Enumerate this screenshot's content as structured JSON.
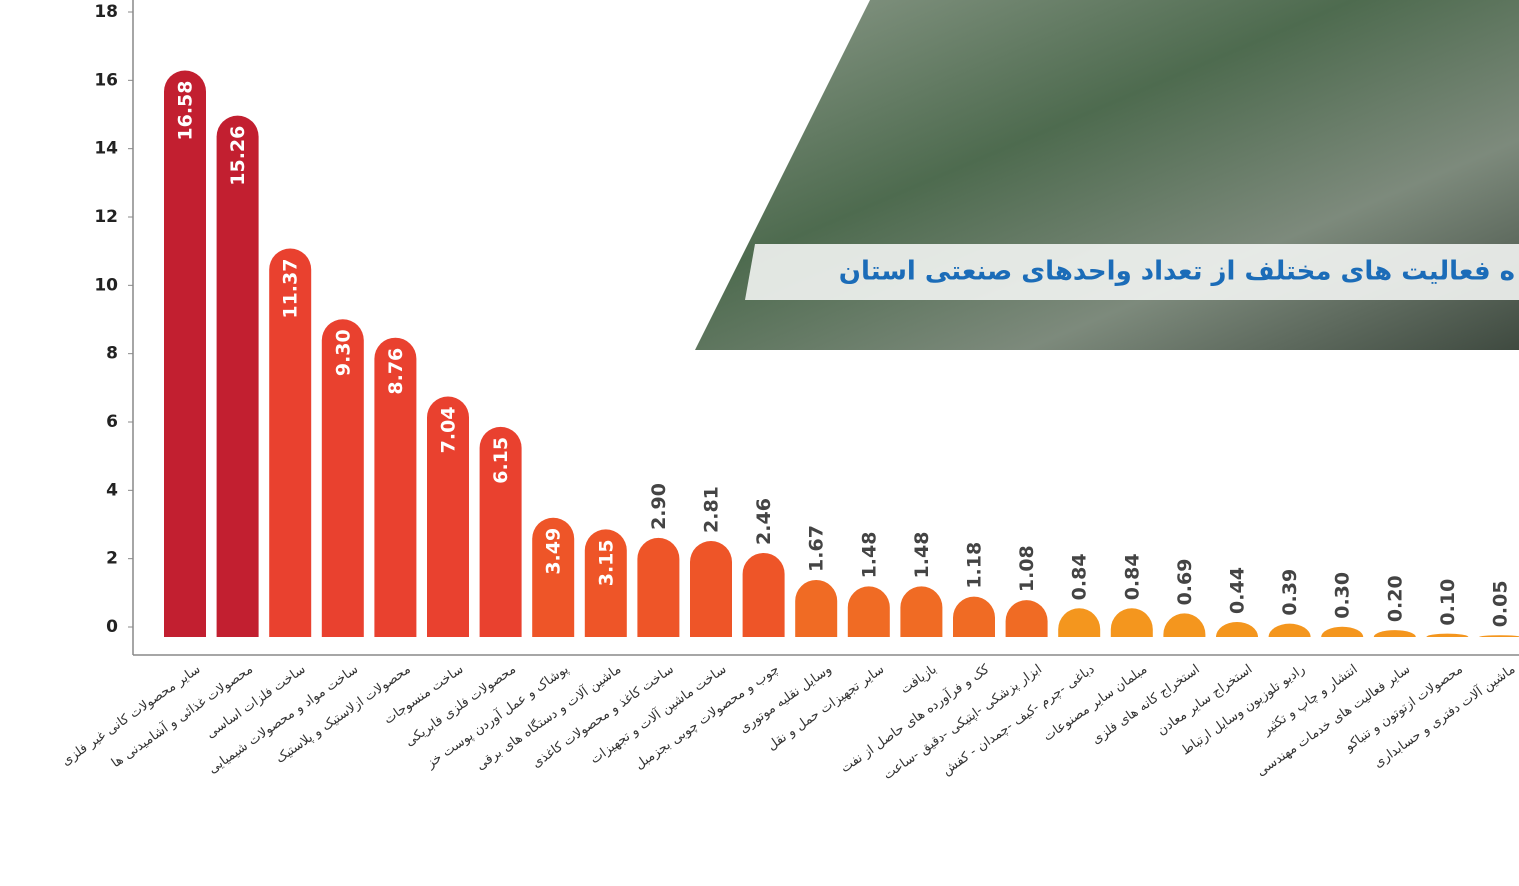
{
  "chart_data": {
    "type": "bar",
    "title": "ه فعالیت های مختلف از تعداد واحدهای صنعتی استان",
    "categories": [
      "سایر محصولات کانی غیر فلزی",
      "محصولات غذائی و آشامیدنی ها",
      "ساخت فلزات اساسی",
      "ساخت مواد و محصولات شیمیایی",
      "محصولات ازلاستیک و پلاستیک",
      "ساخت منسوجات",
      "محصولات فلزی فابریکی",
      "پوشاک و عمل آوردن پوست خز",
      "ماشین آلات و دستگاه های برقی",
      "ساخت کاغذ و محصولات کاغذی",
      "ساخت ماشین آلات و تجهیزات",
      "چوب و محصولات چوبی بجزمبل",
      "وسایل نقلیه موتوری",
      "سایر تجهیزات حمل و نقل",
      "بازیافت",
      "کک و فرآورده های حاصل از نفت",
      "ابزار پزشکی -اپتیکی -دقیق -ساعت",
      "دباغی -چرم -کیف -چمدان - کفش",
      "مبلمان سایر مصنوعات",
      "استخراج کانه های فلزی",
      "استخراج سایر معادن",
      "رادیو تلوزیون وسایل ارتباط",
      "انتشار و چاپ و تکثیر",
      "سایر فعالیت های خدمات مهندسی",
      "محصولات ازتوتون و تنباکو",
      "ماشین آلات دفتری و حسابداری"
    ],
    "values": [
      16.58,
      15.26,
      11.37,
      9.3,
      8.76,
      7.04,
      6.15,
      3.49,
      3.15,
      2.9,
      2.81,
      2.46,
      1.67,
      1.48,
      1.48,
      1.18,
      1.08,
      0.84,
      0.84,
      0.69,
      0.44,
      0.39,
      0.3,
      0.2,
      0.1,
      0.05
    ],
    "value_labels": [
      "16.58",
      "15.26",
      "11.37",
      "9.30",
      "8.76",
      "7.04",
      "6.15",
      "3.49",
      "3.15",
      "2.90",
      "2.81",
      "2.46",
      "1.67",
      "1.48",
      "1.48",
      "1.18",
      "1.08",
      "0.84",
      "0.84",
      "0.69",
      "0.44",
      "0.39",
      "0.30",
      "0.20",
      "0.10",
      "0.05"
    ],
    "colors": [
      "#c21f30",
      "#c21f30",
      "#e9412f",
      "#e9412f",
      "#e9412f",
      "#e9412f",
      "#e9412f",
      "#ee5528",
      "#ee5528",
      "#ee5528",
      "#ee5528",
      "#ee5528",
      "#f06b24",
      "#f06b24",
      "#f06b24",
      "#f06b24",
      "#f06b24",
      "#f4961e",
      "#f4961e",
      "#f4961e",
      "#f4961e",
      "#f4961e",
      "#f4961e",
      "#f4961e",
      "#f4961e",
      "#f4961e"
    ],
    "ylim": [
      0,
      18
    ],
    "yticks": [
      0,
      2,
      4,
      6,
      8,
      10,
      12,
      14,
      16,
      18
    ]
  }
}
